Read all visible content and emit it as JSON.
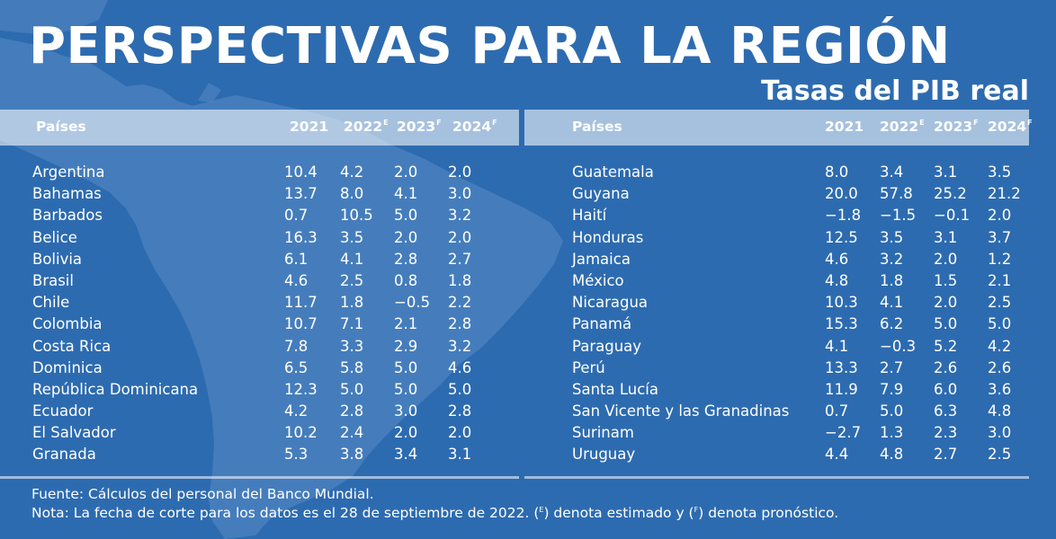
{
  "title": "PERSPECTIVAS PARA LA REGIÓN",
  "subtitle": "Tasas del PIB real",
  "colors": {
    "background": "#2d6bb0",
    "header_band": "#a8c3e2",
    "text": "#ffffff"
  },
  "columns": {
    "country": "Países",
    "years": [
      {
        "year": "2021",
        "mark": ""
      },
      {
        "year": "2022",
        "mark": "E"
      },
      {
        "year": "2023",
        "mark": "F"
      },
      {
        "year": "2024",
        "mark": "F"
      }
    ]
  },
  "left_table": [
    {
      "country": "Argentina",
      "values": [
        "10.4",
        "4.2",
        "2.0",
        "2.0"
      ]
    },
    {
      "country": "Bahamas",
      "values": [
        "13.7",
        "8.0",
        "4.1",
        "3.0"
      ]
    },
    {
      "country": "Barbados",
      "values": [
        "0.7",
        "10.5",
        "5.0",
        "3.2"
      ]
    },
    {
      "country": "Belice",
      "values": [
        "16.3",
        "3.5",
        "2.0",
        "2.0"
      ]
    },
    {
      "country": "Bolivia",
      "values": [
        "6.1",
        "4.1",
        "2.8",
        "2.7"
      ]
    },
    {
      "country": "Brasil",
      "values": [
        "4.6",
        "2.5",
        "0.8",
        "1.8"
      ]
    },
    {
      "country": "Chile",
      "values": [
        "11.7",
        "1.8",
        "−0.5",
        "2.2"
      ]
    },
    {
      "country": "Colombia",
      "values": [
        "10.7",
        "7.1",
        "2.1",
        "2.8"
      ]
    },
    {
      "country": "Costa Rica",
      "values": [
        "7.8",
        "3.3",
        "2.9",
        "3.2"
      ]
    },
    {
      "country": "Dominica",
      "values": [
        "6.5",
        "5.8",
        "5.0",
        "4.6"
      ]
    },
    {
      "country": "República Dominicana",
      "values": [
        "12.3",
        "5.0",
        "5.0",
        "5.0"
      ]
    },
    {
      "country": "Ecuador",
      "values": [
        "4.2",
        "2.8",
        "3.0",
        "2.8"
      ]
    },
    {
      "country": "El Salvador",
      "values": [
        "10.2",
        "2.4",
        "2.0",
        "2.0"
      ]
    },
    {
      "country": "Granada",
      "values": [
        "5.3",
        "3.8",
        "3.4",
        "3.1"
      ]
    }
  ],
  "right_table": [
    {
      "country": "Guatemala",
      "values": [
        "8.0",
        "3.4",
        "3.1",
        "3.5"
      ]
    },
    {
      "country": "Guyana",
      "values": [
        "20.0",
        "57.8",
        "25.2",
        "21.2"
      ]
    },
    {
      "country": "Haití",
      "values": [
        "−1.8",
        "−1.5",
        "−0.1",
        "2.0"
      ]
    },
    {
      "country": "Honduras",
      "values": [
        "12.5",
        "3.5",
        "3.1",
        "3.7"
      ]
    },
    {
      "country": "Jamaica",
      "values": [
        "4.6",
        "3.2",
        "2.0",
        "1.2"
      ]
    },
    {
      "country": "México",
      "values": [
        "4.8",
        "1.8",
        "1.5",
        "2.1"
      ]
    },
    {
      "country": "Nicaragua",
      "values": [
        "10.3",
        "4.1",
        "2.0",
        "2.5"
      ]
    },
    {
      "country": "Panamá",
      "values": [
        "15.3",
        "6.2",
        "5.0",
        "5.0"
      ]
    },
    {
      "country": "Paraguay",
      "values": [
        "4.1",
        "−0.3",
        "5.2",
        "4.2"
      ]
    },
    {
      "country": "Perú",
      "values": [
        "13.3",
        "2.7",
        "2.6",
        "2.6"
      ]
    },
    {
      "country": "Santa Lucía",
      "values": [
        "11.9",
        "7.9",
        "6.0",
        "3.6"
      ]
    },
    {
      "country": "San Vicente y las Granadinas",
      "values": [
        "0.7",
        "5.0",
        "6.3",
        "4.8"
      ]
    },
    {
      "country": "Surinam",
      "values": [
        "−2.7",
        "1.3",
        "2.3",
        "3.0"
      ]
    },
    {
      "country": "Uruguay",
      "values": [
        "4.4",
        "4.8",
        "2.7",
        "2.5"
      ]
    }
  ],
  "notes": {
    "source": "Fuente: Cálculos del personal del Banco Mundial.",
    "note_part1": "Nota: La fecha de corte para los datos es el 28 de septiembre de 2022. (",
    "mark_estimated": "E",
    "note_part2": ") denota estimado y (",
    "mark_forecast": "F",
    "note_part3": ") denota pronóstico."
  }
}
